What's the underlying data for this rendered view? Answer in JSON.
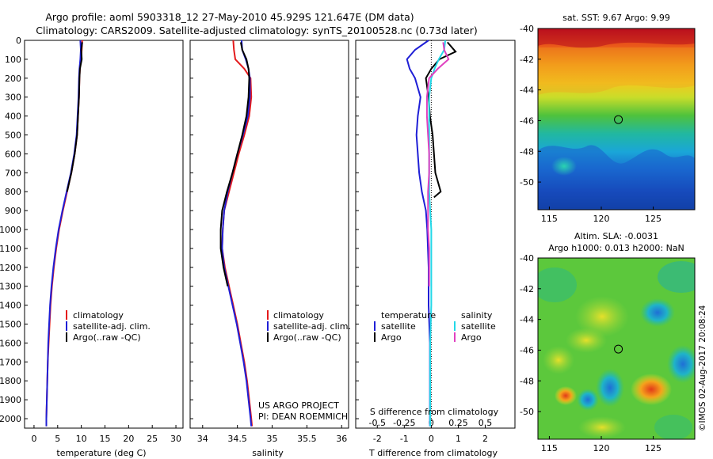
{
  "title": {
    "line1": "Argo profile: aoml 5903318_12 27-May-2010 45.929S 121.647E (DM data)",
    "line2": "Climatology: CARS2009. Satellite-adjusted climatology: synTS_20100528.nc (0.73d later)"
  },
  "depth_ticks": [
    "0",
    "100",
    "200",
    "300",
    "400",
    "500",
    "600",
    "700",
    "800",
    "900",
    "1000",
    "1100",
    "1200",
    "1300",
    "1400",
    "1500",
    "1600",
    "1700",
    "1800",
    "1900",
    "2000"
  ],
  "colors": {
    "climatology": "#e41a1c",
    "satellite": "#1f1fd6",
    "argo": "#000000",
    "sat_salinity": "#22d8e8",
    "argo_salinity": "#e040c0"
  },
  "chart_data": [
    {
      "type": "line",
      "panel": "temperature",
      "xlabel": "temperature (deg C)",
      "x_ticks": [
        "0",
        "5",
        "10",
        "15",
        "20",
        "25",
        "30"
      ],
      "xlim": [
        -2,
        31.5
      ],
      "ylim": [
        2050,
        0
      ],
      "legend": [
        "climatology",
        "satellite-adj. clim.",
        "Argo(..raw -QC)"
      ],
      "series": [
        {
          "name": "climatology",
          "depth": [
            0,
            50,
            100,
            150,
            200,
            300,
            400,
            500,
            600,
            700,
            800,
            900,
            1000,
            1100,
            1200,
            1300,
            1400,
            1500,
            1600,
            1700,
            1800,
            1900,
            2000,
            2040
          ],
          "values": [
            10.2,
            10.1,
            9.9,
            9.7,
            9.6,
            9.5,
            9.3,
            9.1,
            8.6,
            7.9,
            7.0,
            6.1,
            5.3,
            4.7,
            4.2,
            3.8,
            3.5,
            3.3,
            3.1,
            2.9,
            2.8,
            2.7,
            2.6,
            2.6
          ]
        },
        {
          "name": "satellite-adj. clim.",
          "depth": [
            0,
            50,
            100,
            150,
            200,
            300,
            400,
            500,
            600,
            700,
            800,
            900,
            1000,
            1100,
            1200,
            1300,
            1400,
            1500,
            1600,
            1700,
            1800,
            1900,
            2000,
            2040
          ],
          "values": [
            9.8,
            9.9,
            9.8,
            9.6,
            9.5,
            9.4,
            9.2,
            9.0,
            8.5,
            7.8,
            6.9,
            6.0,
            5.2,
            4.6,
            4.1,
            3.7,
            3.4,
            3.2,
            3.0,
            2.9,
            2.8,
            2.7,
            2.6,
            2.6
          ]
        },
        {
          "name": "Argo(..raw -QC)",
          "depth": [
            10,
            50,
            100,
            150,
            200,
            300,
            400,
            500,
            600,
            700,
            800
          ],
          "values": [
            10.2,
            10.0,
            10.1,
            9.7,
            9.6,
            9.5,
            9.3,
            9.1,
            8.6,
            7.9,
            7.0
          ]
        }
      ]
    },
    {
      "type": "line",
      "panel": "salinity",
      "xlabel": "salinity",
      "x_ticks": [
        "34",
        "34.5",
        "35",
        "35.5",
        "36"
      ],
      "xlim": [
        33.82,
        36.1
      ],
      "ylim": [
        2050,
        0
      ],
      "legend": [
        "climatology",
        "satellite-adj. clim.",
        "Argo(..raw -QC)"
      ],
      "annotation": [
        "US ARGO PROJECT",
        "PI: DEAN ROEMMICH"
      ],
      "series": [
        {
          "name": "climatology",
          "depth": [
            0,
            50,
            100,
            150,
            200,
            300,
            400,
            500,
            600,
            700,
            800,
            900,
            1000,
            1100,
            1200,
            1300,
            1400,
            1500,
            1600,
            1700,
            1800,
            1900,
            2000,
            2040
          ],
          "values": [
            34.44,
            34.45,
            34.47,
            34.6,
            34.69,
            34.7,
            34.67,
            34.6,
            34.52,
            34.45,
            34.38,
            34.31,
            34.29,
            34.28,
            34.32,
            34.38,
            34.44,
            34.5,
            34.55,
            34.6,
            34.64,
            34.67,
            34.7,
            34.71
          ]
        },
        {
          "name": "satellite-adj. clim.",
          "depth": [
            0,
            50,
            100,
            150,
            200,
            300,
            400,
            500,
            600,
            700,
            800,
            900,
            1000,
            1100,
            1200,
            1300,
            1400,
            1500,
            1600,
            1700,
            1800,
            1900,
            2000,
            2040
          ],
          "values": [
            34.56,
            34.57,
            34.62,
            34.66,
            34.68,
            34.68,
            34.65,
            34.58,
            34.5,
            34.43,
            34.36,
            34.31,
            34.29,
            34.28,
            34.31,
            34.37,
            34.43,
            34.49,
            34.54,
            34.59,
            34.63,
            34.66,
            34.69,
            34.7
          ]
        },
        {
          "name": "Argo(..raw -QC)",
          "depth": [
            10,
            50,
            100,
            150,
            200,
            300,
            400,
            500,
            600,
            700,
            800,
            900,
            1000,
            1100,
            1200,
            1300
          ],
          "values": [
            34.55,
            34.57,
            34.63,
            34.66,
            34.67,
            34.66,
            34.63,
            34.57,
            34.5,
            34.43,
            34.35,
            34.28,
            34.26,
            34.26,
            34.3,
            34.36
          ]
        }
      ]
    },
    {
      "type": "line",
      "panel": "difference",
      "xlabel": "T difference from climatology",
      "x_ticks": [
        "-2",
        "-1",
        "0",
        "1",
        "2"
      ],
      "xlim": [
        -2.8,
        3.1
      ],
      "top_axis_label": "S difference from climatology",
      "top_ticks": [
        "-0.5",
        "-0.25",
        "0",
        "0.25",
        "0.5"
      ],
      "top_lim": [
        -0.7,
        0.775
      ],
      "ylim": [
        2050,
        0
      ],
      "legend_temperature": {
        "title": "temperature",
        "items": [
          "satellite",
          "Argo"
        ]
      },
      "legend_salinity": {
        "title": "salinity",
        "items": [
          "satellite",
          "Argo"
        ]
      },
      "series": [
        {
          "name": "temperature satellite",
          "depth": [
            0,
            50,
            100,
            150,
            200,
            300,
            400,
            500,
            600,
            700,
            800,
            900,
            1000,
            1200,
            1400,
            1600,
            1800,
            2000,
            2040
          ],
          "values": [
            -0.1,
            -0.6,
            -0.9,
            -0.8,
            -0.6,
            -0.4,
            -0.5,
            -0.55,
            -0.5,
            -0.45,
            -0.35,
            -0.2,
            -0.15,
            -0.1,
            -0.1,
            -0.05,
            -0.05,
            -0.05,
            -0.05
          ]
        },
        {
          "name": "temperature Argo",
          "depth": [
            10,
            60,
            100,
            150,
            200,
            300,
            400,
            500,
            600,
            700,
            800,
            830
          ],
          "values": [
            0.6,
            0.9,
            0.3,
            0.0,
            -0.2,
            -0.1,
            -0.05,
            0.05,
            0.1,
            0.15,
            0.35,
            0.1
          ]
        },
        {
          "name": "salinity satellite",
          "depth": [
            0,
            50,
            100,
            150,
            200,
            300,
            400,
            500,
            600,
            700,
            800,
            900,
            1000,
            1200,
            1400,
            1600,
            1800,
            2000,
            2040
          ],
          "values": [
            0.13,
            0.12,
            0.07,
            0.03,
            0.0,
            -0.02,
            -0.02,
            -0.02,
            -0.02,
            -0.02,
            -0.02,
            -0.01,
            0.0,
            0.0,
            0.0,
            -0.01,
            -0.01,
            -0.01,
            -0.01
          ]
        },
        {
          "name": "salinity Argo",
          "depth": [
            10,
            50,
            100,
            150,
            200,
            300,
            400,
            500,
            600,
            700,
            800,
            900,
            1000,
            1100,
            1200,
            1300
          ],
          "values": [
            0.11,
            0.12,
            0.16,
            0.06,
            -0.02,
            -0.04,
            -0.04,
            -0.03,
            -0.02,
            -0.02,
            -0.03,
            -0.03,
            -0.03,
            -0.02,
            -0.02,
            -0.02
          ]
        }
      ]
    },
    {
      "type": "heatmap",
      "panel": "sst-map",
      "title": "sat. SST: 9.67 Argo: 9.99",
      "x_ticks": [
        "115",
        "120",
        "125"
      ],
      "y_ticks": [
        "-40",
        "-42",
        "-44",
        "-46",
        "-48",
        "-50"
      ],
      "xlim": [
        113.9,
        129
      ],
      "ylim": [
        -51.8,
        -40
      ],
      "marker": {
        "lon": 121.647,
        "lat": -45.929
      }
    },
    {
      "type": "heatmap",
      "panel": "sla-map",
      "title_line1": "Altim. SLA: -0.0031",
      "title_line2": "Argo h1000: 0.013 h2000: NaN",
      "x_ticks": [
        "115",
        "120",
        "125"
      ],
      "y_ticks": [
        "-40",
        "-42",
        "-44",
        "-46",
        "-48",
        "-50"
      ],
      "xlim": [
        113.9,
        129
      ],
      "ylim": [
        -51.8,
        -40
      ],
      "marker": {
        "lon": 121.647,
        "lat": -45.929
      }
    }
  ],
  "side_stamp": "©IMOS 02-Aug-2017 20:08:24"
}
